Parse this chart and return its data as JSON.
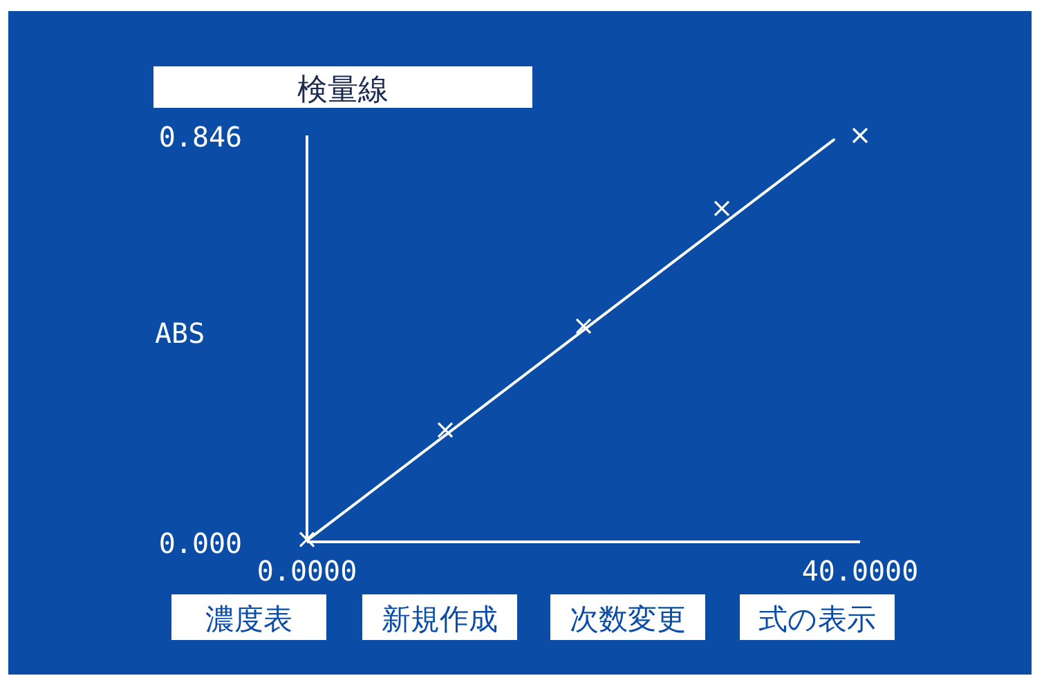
{
  "chart_data": {
    "type": "scatter",
    "title": "検量線",
    "ylabel": "ABS",
    "x": [
      0,
      10,
      20,
      30,
      40
    ],
    "series": [
      {
        "color": "#ffffff",
        "marker": "cross",
        "values": [
          0.005,
          0.233,
          0.449,
          0.694,
          0.846
        ]
      },
      {
        "type": "line",
        "color": "#ffffff",
        "line_style": "solid",
        "x": [
          0,
          38.1
        ],
        "values": [
          0.003,
          0.837
        ]
      }
    ],
    "xlim": [
      0,
      40
    ],
    "ylim": [
      0,
      0.846
    ],
    "xticks": [
      {
        "value": 0,
        "label": "0.0000"
      },
      {
        "value": 40,
        "label": "40.0000"
      }
    ],
    "yticks": [
      {
        "value": 0,
        "label": "0.000"
      },
      {
        "value": 0.846,
        "label": "0.846"
      }
    ],
    "grid": false,
    "annotations": [
      "濃度表",
      "新規作成",
      "次数変更",
      "式の表示"
    ]
  }
}
